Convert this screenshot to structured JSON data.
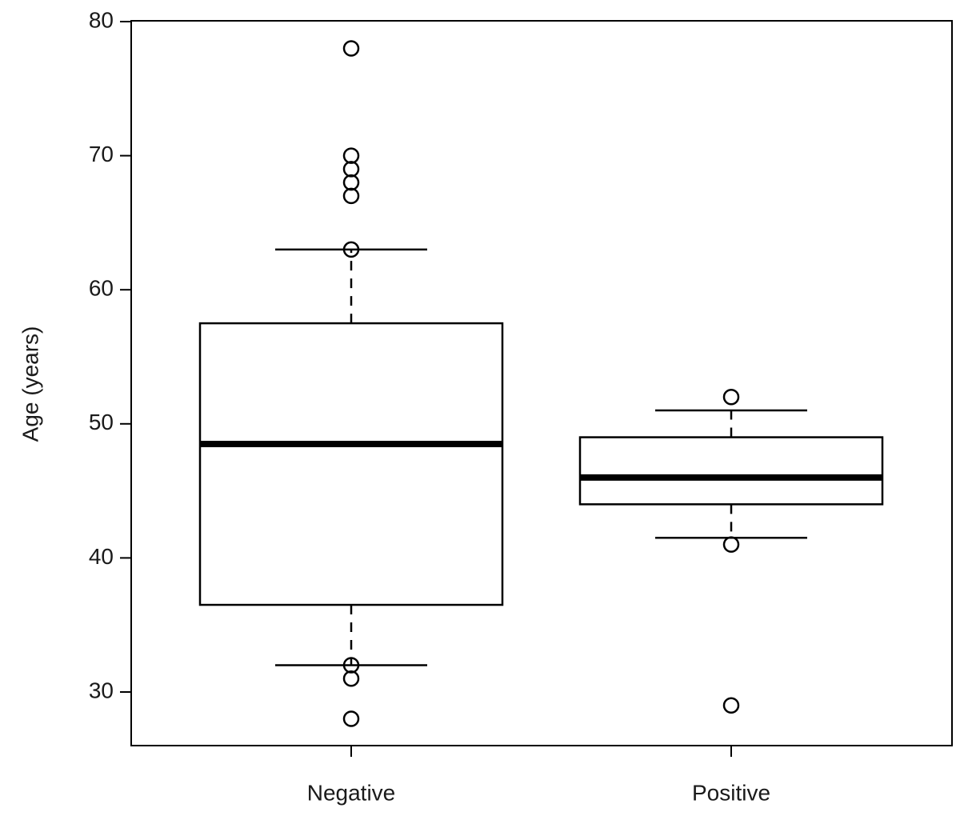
{
  "chart_data": {
    "type": "box",
    "title": "",
    "xlabel": "",
    "ylabel": "Age (years)",
    "ylim": [
      26,
      81
    ],
    "yticks": [
      30,
      40,
      50,
      60,
      70,
      80
    ],
    "categories": [
      "Negative",
      "Positive"
    ],
    "grid": false,
    "colors": {
      "stroke": "#000000",
      "box_fill": "#ffffff",
      "text": "#1a1a1a"
    },
    "boxes": [
      {
        "name": "Negative",
        "whisker_low": 32,
        "q1": 36.5,
        "median": 48.5,
        "q3": 57.5,
        "whisker_high": 63,
        "outliers": [
          78,
          70,
          69,
          68,
          67,
          63,
          32,
          31,
          28
        ]
      },
      {
        "name": "Positive",
        "whisker_low": 41.5,
        "q1": 44,
        "median": 46,
        "q3": 49,
        "whisker_high": 51,
        "outliers": [
          52,
          41,
          29
        ]
      }
    ]
  }
}
